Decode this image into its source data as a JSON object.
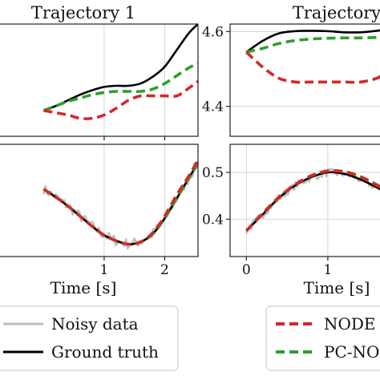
{
  "chart_data": [
    {
      "type": "line",
      "title": "Trajectory 1",
      "xlim": [
        -0.8,
        2.55
      ],
      "ylim": [
        0.0,
        1.0
      ],
      "xticks": [
        1,
        2
      ],
      "yticks": [],
      "series": [
        {
          "key": "gt",
          "color": "#000000",
          "x": [
            0,
            0.2,
            0.4,
            0.6,
            0.8,
            1.0,
            1.2,
            1.4,
            1.6,
            1.8,
            2.0,
            2.2,
            2.4,
            2.55
          ],
          "y": [
            0.23,
            0.27,
            0.32,
            0.37,
            0.41,
            0.44,
            0.45,
            0.45,
            0.47,
            0.53,
            0.62,
            0.77,
            0.92,
            1.0
          ]
        },
        {
          "key": "pc",
          "color": "#2ca02c",
          "x": [
            0,
            0.2,
            0.4,
            0.6,
            0.8,
            1.0,
            1.2,
            1.4,
            1.6,
            1.8,
            2.0,
            2.2,
            2.4,
            2.55
          ],
          "y": [
            0.23,
            0.27,
            0.31,
            0.34,
            0.37,
            0.39,
            0.4,
            0.4,
            0.4,
            0.42,
            0.47,
            0.54,
            0.61,
            0.65
          ]
        },
        {
          "key": "node",
          "color": "#d62728",
          "x": [
            0,
            0.2,
            0.4,
            0.6,
            0.8,
            1.0,
            1.2,
            1.4,
            1.6,
            1.8,
            2.0,
            2.2,
            2.4,
            2.55
          ],
          "y": [
            0.23,
            0.21,
            0.19,
            0.16,
            0.16,
            0.19,
            0.25,
            0.32,
            0.36,
            0.36,
            0.36,
            0.36,
            0.43,
            0.49
          ]
        }
      ]
    },
    {
      "type": "line",
      "title": "Trajectory",
      "xlim": [
        -0.2,
        1.7
      ],
      "ylim": [
        4.32,
        4.62
      ],
      "xticks": [],
      "yticks": [
        4.4,
        4.6
      ],
      "yticklabels": [
        "4.4",
        "4.6"
      ],
      "series": [
        {
          "key": "gt",
          "color": "#000000",
          "x": [
            0,
            0.2,
            0.4,
            0.6,
            0.8,
            1.0,
            1.2,
            1.4,
            1.6,
            1.7
          ],
          "y": [
            4.545,
            4.575,
            4.595,
            4.601,
            4.602,
            4.601,
            4.598,
            4.598,
            4.602,
            4.606
          ]
        },
        {
          "key": "pc",
          "color": "#2ca02c",
          "x": [
            0,
            0.2,
            0.4,
            0.6,
            0.8,
            1.0,
            1.2,
            1.4,
            1.6,
            1.7
          ],
          "y": [
            4.545,
            4.555,
            4.568,
            4.576,
            4.58,
            4.582,
            4.583,
            4.583,
            4.584,
            4.585
          ]
        },
        {
          "key": "node",
          "color": "#d62728",
          "x": [
            0,
            0.2,
            0.4,
            0.6,
            0.8,
            1.0,
            1.2,
            1.4,
            1.6,
            1.7
          ],
          "y": [
            4.545,
            4.505,
            4.475,
            4.465,
            4.465,
            4.465,
            4.465,
            4.465,
            4.475,
            4.49
          ]
        }
      ]
    },
    {
      "type": "line",
      "xlim": [
        -0.8,
        2.55
      ],
      "ylim": [
        0.0,
        1.0
      ],
      "xticks": [
        1,
        2
      ],
      "xticklabels": [
        "1",
        "2"
      ],
      "yticks": [],
      "xlabel": "Time [s]",
      "series": [
        {
          "key": "noisy",
          "color": "#bdbdbd",
          "x": [
            0,
            0.2,
            0.4,
            0.6,
            0.8,
            1.0,
            1.2,
            1.4,
            1.6,
            1.8,
            2.0,
            2.2,
            2.4,
            2.55
          ],
          "y": [
            0.6,
            0.53,
            0.45,
            0.36,
            0.27,
            0.19,
            0.14,
            0.11,
            0.13,
            0.2,
            0.34,
            0.52,
            0.7,
            0.84
          ],
          "noise": 0.045
        },
        {
          "key": "gt",
          "color": "#000000",
          "x": [
            0,
            0.2,
            0.4,
            0.6,
            0.8,
            1.0,
            1.2,
            1.4,
            1.6,
            1.8,
            2.0,
            2.2,
            2.4,
            2.55
          ],
          "y": [
            0.6,
            0.53,
            0.45,
            0.36,
            0.27,
            0.19,
            0.14,
            0.11,
            0.13,
            0.2,
            0.34,
            0.52,
            0.7,
            0.84
          ]
        },
        {
          "key": "pc",
          "color": "#2ca02c",
          "x": [
            0,
            0.2,
            0.4,
            0.6,
            0.8,
            1.0,
            1.2,
            1.4,
            1.6,
            1.8,
            2.0,
            2.2,
            2.4,
            2.55
          ],
          "y": [
            0.6,
            0.53,
            0.45,
            0.36,
            0.27,
            0.19,
            0.14,
            0.11,
            0.13,
            0.2,
            0.34,
            0.52,
            0.7,
            0.83
          ]
        },
        {
          "key": "node",
          "color": "#d62728",
          "x": [
            0,
            0.2,
            0.4,
            0.6,
            0.8,
            1.0,
            1.2,
            1.4,
            1.6,
            1.8,
            2.0,
            2.2,
            2.4,
            2.55
          ],
          "y": [
            0.6,
            0.53,
            0.45,
            0.36,
            0.27,
            0.19,
            0.14,
            0.11,
            0.13,
            0.21,
            0.36,
            0.55,
            0.72,
            0.86
          ]
        }
      ]
    },
    {
      "type": "line",
      "xlim": [
        -0.2,
        1.7
      ],
      "ylim": [
        0.32,
        0.56
      ],
      "xticks": [
        0,
        1
      ],
      "xticklabels": [
        "0",
        "1"
      ],
      "yticks": [
        0.4,
        0.5
      ],
      "yticklabels": [
        "0.4",
        "0.5"
      ],
      "xlabel": "Time [s]",
      "series": [
        {
          "key": "noisy",
          "color": "#bdbdbd",
          "x": [
            0,
            0.2,
            0.4,
            0.6,
            0.8,
            1.0,
            1.2,
            1.4,
            1.6,
            1.7
          ],
          "y": [
            0.375,
            0.41,
            0.445,
            0.472,
            0.49,
            0.5,
            0.497,
            0.485,
            0.468,
            0.458
          ],
          "noise": 0.008
        },
        {
          "key": "gt",
          "color": "#000000",
          "x": [
            0,
            0.2,
            0.4,
            0.6,
            0.8,
            1.0,
            1.2,
            1.4,
            1.6,
            1.7
          ],
          "y": [
            0.375,
            0.41,
            0.445,
            0.472,
            0.49,
            0.5,
            0.497,
            0.485,
            0.468,
            0.458
          ]
        },
        {
          "key": "pc",
          "color": "#2ca02c",
          "x": [
            0,
            0.2,
            0.4,
            0.6,
            0.8,
            1.0,
            1.2,
            1.4,
            1.6,
            1.7
          ],
          "y": [
            0.375,
            0.412,
            0.447,
            0.474,
            0.493,
            0.503,
            0.502,
            0.491,
            0.474,
            0.464
          ]
        },
        {
          "key": "node",
          "color": "#d62728",
          "x": [
            0,
            0.2,
            0.4,
            0.6,
            0.8,
            1.0,
            1.2,
            1.4,
            1.6,
            1.7
          ],
          "y": [
            0.375,
            0.412,
            0.447,
            0.474,
            0.493,
            0.503,
            0.501,
            0.49,
            0.472,
            0.462
          ]
        }
      ]
    }
  ],
  "legend": [
    {
      "key": "noisy",
      "label": "Noisy data",
      "color": "#bdbdbd"
    },
    {
      "key": "gt",
      "label": "Ground truth",
      "color": "#000000"
    },
    {
      "key": "node",
      "label": "NODE",
      "color": "#d62728"
    },
    {
      "key": "pc",
      "label": "PC-NODE",
      "color": "#2ca02c"
    }
  ]
}
